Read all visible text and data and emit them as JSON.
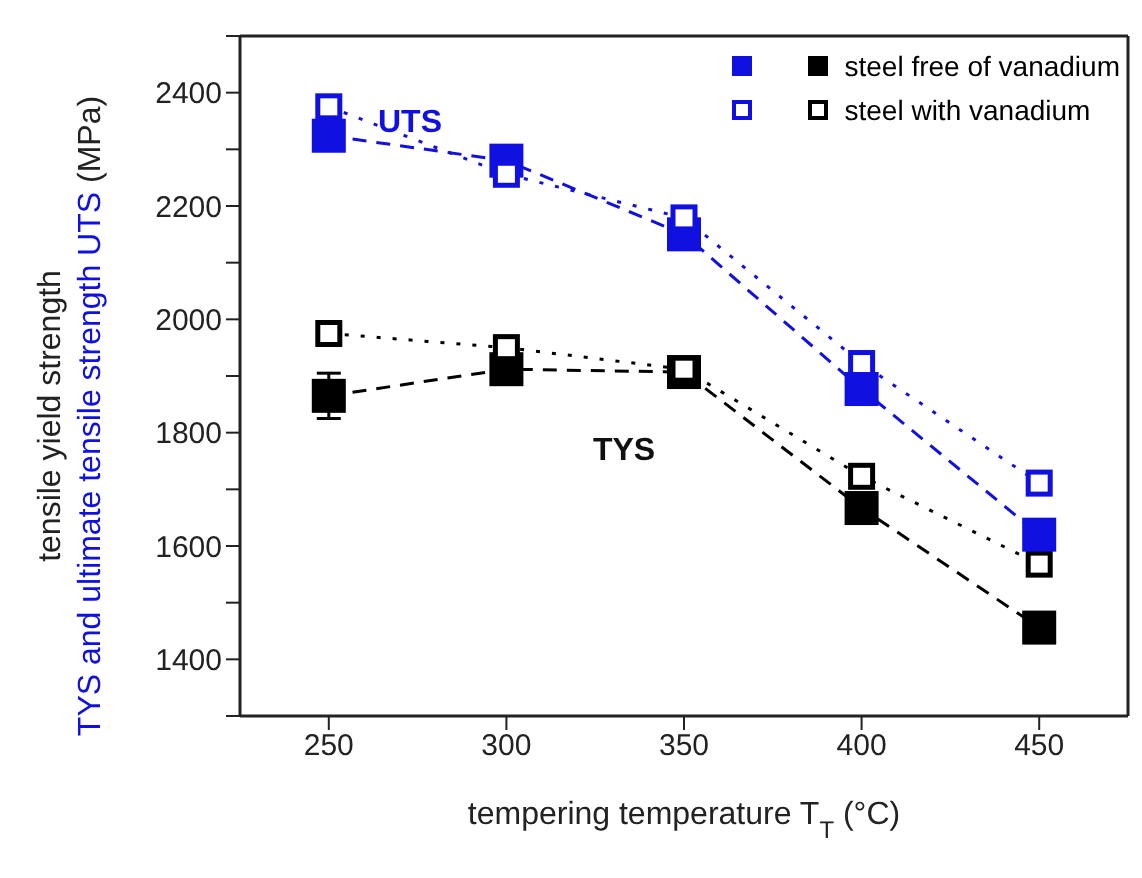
{
  "chart_data": {
    "type": "line",
    "xlabel": "tempering temperature T$_{T}$ (°C)",
    "ylabel": "tensile yield strength TYS and ultimate tensile strength UTS (MPa)",
    "x": [
      250,
      300,
      350,
      400,
      450
    ],
    "series": [
      {
        "name": "steel free of vanadium",
        "color": "#000000",
        "values": [
          1865,
          1912,
          1907,
          1667,
          1456
        ],
        "errors": [
          40,
          null,
          null,
          null,
          null
        ],
        "marker": "square",
        "line_style": "dashed"
      },
      {
        "name": "steel with vanadium",
        "color": "#000000",
        "values": [
          1975,
          1950,
          1912,
          1723,
          1568
        ],
        "errors": [
          20,
          20,
          20,
          null,
          null
        ],
        "marker": "square-open",
        "line_style": "dotted"
      },
      {
        "color": "#1010e0",
        "values": [
          2324,
          2280,
          2150,
          1877,
          1620
        ],
        "marker": "square",
        "line_style": "dashed"
      },
      {
        "color": "#1010e0",
        "values": [
          2375,
          2256,
          2179,
          1922,
          1711
        ],
        "marker": "square-open",
        "line_style": "dotted"
      }
    ],
    "annotations": [
      "UTS",
      "TYS"
    ],
    "xlim": [
      225,
      475
    ],
    "xticks": [
      250,
      300,
      350,
      400,
      450
    ],
    "ylim": [
      1300,
      2500
    ],
    "yticks": [
      {
        "value": 1300,
        "label": null
      },
      1400,
      {
        "value": 1500,
        "label": null
      },
      1600,
      {
        "value": 1700,
        "label": null
      },
      1800,
      {
        "value": 1900,
        "label": null
      },
      2000,
      {
        "value": 2100,
        "label": null
      },
      2200,
      {
        "value": 2300,
        "label": null
      },
      2400,
      {
        "value": 2500,
        "label": null
      }
    ],
    "grid": false,
    "legend": "top right"
  }
}
